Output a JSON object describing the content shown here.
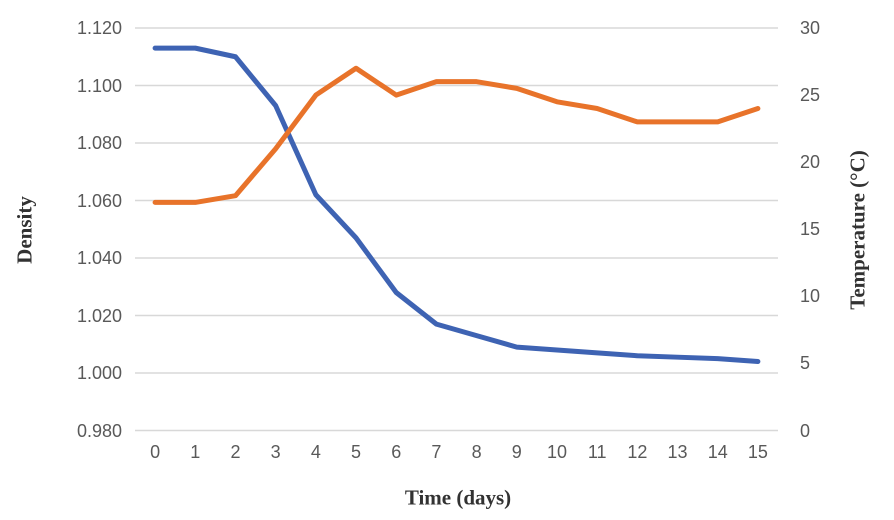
{
  "chart_data": {
    "type": "line",
    "x": [
      0,
      1,
      2,
      3,
      4,
      5,
      6,
      7,
      8,
      9,
      10,
      11,
      12,
      13,
      14,
      15
    ],
    "x_axis": {
      "title": "Time (days)",
      "labels": [
        "0",
        "1",
        "2",
        "3",
        "4",
        "5",
        "6",
        "7",
        "8",
        "9",
        "10",
        "11",
        "12",
        "13",
        "14",
        "15"
      ]
    },
    "left_axis": {
      "title": "Density",
      "min": 0.98,
      "max": 1.12,
      "step": 0.02,
      "decimals": 3
    },
    "right_axis": {
      "title": "Temperature (°C)",
      "min": 0,
      "max": 30,
      "step": 5,
      "decimals": 0
    },
    "series": [
      {
        "name": "Density",
        "axis": "left",
        "color": "#3e63b3",
        "values": [
          1.113,
          1.113,
          1.11,
          1.093,
          1.062,
          1.047,
          1.028,
          1.017,
          1.013,
          1.009,
          1.008,
          1.007,
          1.006,
          1.0055,
          1.005,
          1.004
        ]
      },
      {
        "name": "Temperature",
        "axis": "right",
        "color": "#e8732a",
        "values": [
          17,
          17,
          17.5,
          21,
          25,
          27,
          25,
          26,
          26,
          25.5,
          24.5,
          24,
          23,
          23,
          23,
          24
        ]
      }
    ],
    "grid": true,
    "legend": "none",
    "gridline_color": "#d8d8d8",
    "tick_label_color": "#595959"
  }
}
